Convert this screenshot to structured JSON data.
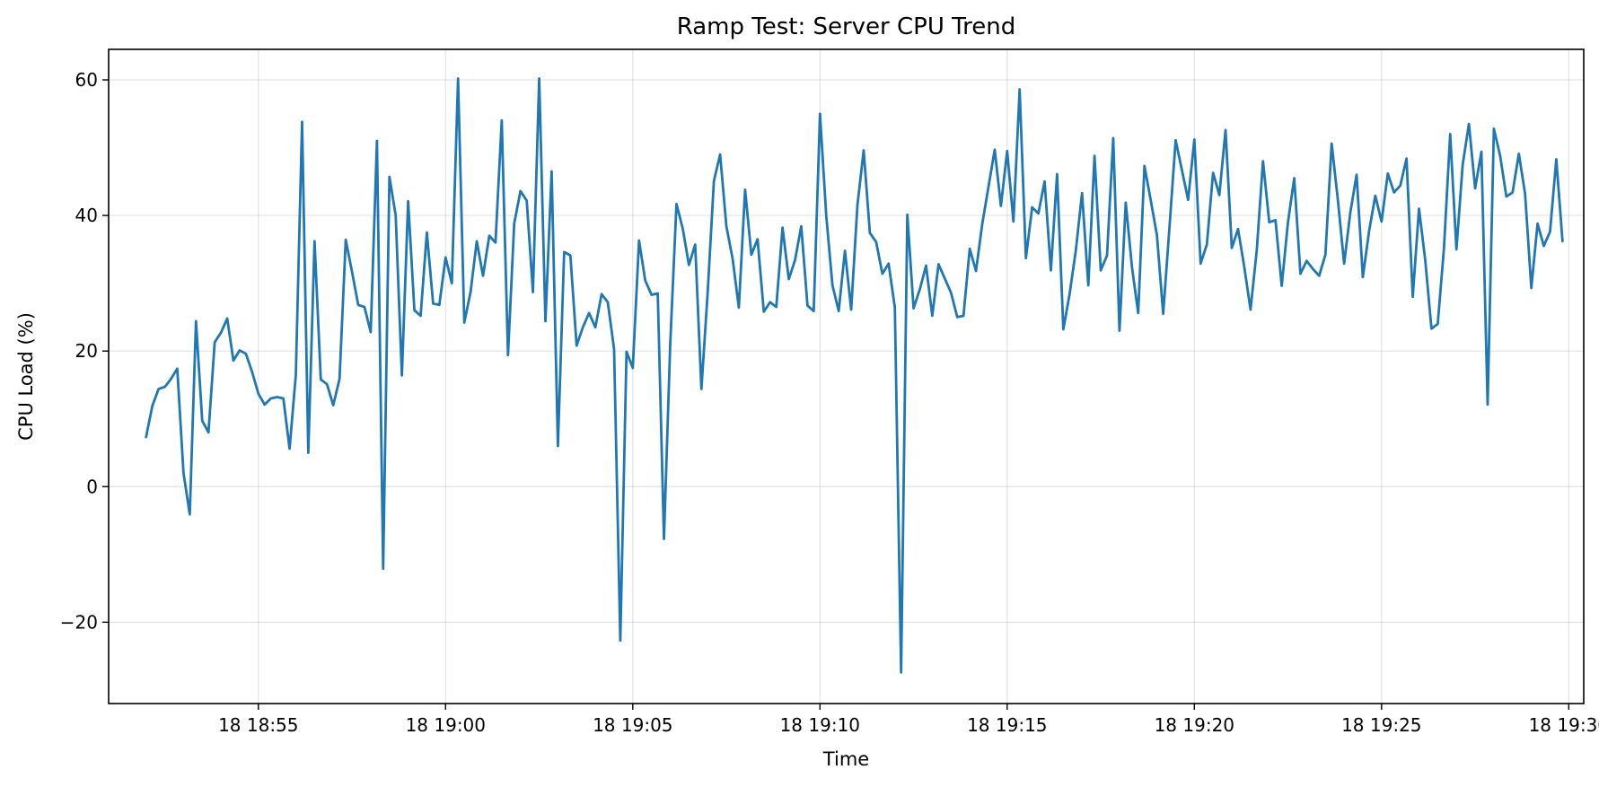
{
  "chart_data": {
    "type": "line",
    "title": "Ramp Test: Server CPU Trend",
    "xlabel": "Time",
    "ylabel": "CPU Load (%)",
    "x_unit": "minutes after 18 18:52",
    "x_start_label": "18 18:52",
    "xlim": [
      -1.0,
      38.4
    ],
    "ylim": [
      -32,
      64.5
    ],
    "grid": true,
    "line_color": "#1f77b4",
    "x_ticks": [
      {
        "value": 3,
        "label": "18 18:55"
      },
      {
        "value": 8,
        "label": "18 19:00"
      },
      {
        "value": 13,
        "label": "18 19:05"
      },
      {
        "value": 18,
        "label": "18 19:10"
      },
      {
        "value": 23,
        "label": "18 19:15"
      },
      {
        "value": 28,
        "label": "18 19:20"
      },
      {
        "value": 33,
        "label": "18 19:25"
      },
      {
        "value": 38,
        "label": "18 19:30"
      }
    ],
    "y_ticks": [
      {
        "value": -20,
        "label": "−20"
      },
      {
        "value": 0,
        "label": "0"
      },
      {
        "value": 20,
        "label": "20"
      },
      {
        "value": 40,
        "label": "40"
      },
      {
        "value": 60,
        "label": "60"
      }
    ],
    "series": [
      {
        "values": [
          [
            0.0,
            7.3
          ],
          [
            0.167,
            11.9
          ],
          [
            0.333,
            14.4
          ],
          [
            0.5,
            14.7
          ],
          [
            0.667,
            15.9
          ],
          [
            0.833,
            17.4
          ],
          [
            1.0,
            2.0
          ],
          [
            1.167,
            -4.1
          ],
          [
            1.333,
            24.4
          ],
          [
            1.5,
            9.7
          ],
          [
            1.667,
            8.0
          ],
          [
            1.833,
            21.3
          ],
          [
            2.0,
            22.7
          ],
          [
            2.167,
            24.8
          ],
          [
            2.333,
            18.6
          ],
          [
            2.5,
            20.1
          ],
          [
            2.667,
            19.6
          ],
          [
            2.833,
            16.9
          ],
          [
            3.0,
            13.7
          ],
          [
            3.167,
            12.1
          ],
          [
            3.333,
            13.0
          ],
          [
            3.5,
            13.2
          ],
          [
            3.667,
            13.0
          ],
          [
            3.833,
            5.6
          ],
          [
            4.0,
            16.5
          ],
          [
            4.167,
            53.8
          ],
          [
            4.333,
            5.0
          ],
          [
            4.5,
            36.2
          ],
          [
            4.667,
            15.8
          ],
          [
            4.833,
            15.1
          ],
          [
            5.0,
            12.0
          ],
          [
            5.167,
            15.9
          ],
          [
            5.333,
            36.4
          ],
          [
            5.5,
            31.7
          ],
          [
            5.667,
            26.8
          ],
          [
            5.833,
            26.5
          ],
          [
            6.0,
            22.8
          ],
          [
            6.167,
            51.0
          ],
          [
            6.333,
            -12.1
          ],
          [
            6.5,
            45.7
          ],
          [
            6.667,
            40.0
          ],
          [
            6.833,
            16.4
          ],
          [
            7.0,
            42.1
          ],
          [
            7.167,
            26.0
          ],
          [
            7.333,
            25.2
          ],
          [
            7.5,
            37.5
          ],
          [
            7.667,
            27.0
          ],
          [
            7.833,
            26.8
          ],
          [
            8.0,
            33.8
          ],
          [
            8.167,
            30.0
          ],
          [
            8.333,
            60.2
          ],
          [
            8.5,
            24.2
          ],
          [
            8.667,
            28.7
          ],
          [
            8.833,
            36.2
          ],
          [
            9.0,
            31.1
          ],
          [
            9.167,
            37.0
          ],
          [
            9.333,
            36.0
          ],
          [
            9.5,
            54.0
          ],
          [
            9.667,
            19.4
          ],
          [
            9.833,
            38.8
          ],
          [
            10.0,
            43.6
          ],
          [
            10.167,
            42.2
          ],
          [
            10.333,
            28.7
          ],
          [
            10.5,
            60.2
          ],
          [
            10.667,
            24.4
          ],
          [
            10.833,
            46.5
          ],
          [
            11.0,
            6.0
          ],
          [
            11.167,
            34.6
          ],
          [
            11.333,
            34.1
          ],
          [
            11.5,
            20.8
          ],
          [
            11.667,
            23.5
          ],
          [
            11.833,
            25.6
          ],
          [
            12.0,
            23.5
          ],
          [
            12.167,
            28.4
          ],
          [
            12.333,
            27.2
          ],
          [
            12.5,
            20.3
          ],
          [
            12.667,
            -22.7
          ],
          [
            12.833,
            19.9
          ],
          [
            13.0,
            17.5
          ],
          [
            13.167,
            36.3
          ],
          [
            13.333,
            30.4
          ],
          [
            13.5,
            28.3
          ],
          [
            13.667,
            28.5
          ],
          [
            13.833,
            -7.7
          ],
          [
            14.0,
            21.0
          ],
          [
            14.167,
            41.7
          ],
          [
            14.333,
            38.1
          ],
          [
            14.5,
            32.7
          ],
          [
            14.667,
            35.7
          ],
          [
            14.833,
            14.4
          ],
          [
            15.0,
            28.6
          ],
          [
            15.167,
            45.1
          ],
          [
            15.333,
            49.0
          ],
          [
            15.5,
            38.4
          ],
          [
            15.667,
            33.6
          ],
          [
            15.833,
            26.4
          ],
          [
            16.0,
            43.8
          ],
          [
            16.167,
            34.2
          ],
          [
            16.333,
            36.5
          ],
          [
            16.5,
            25.8
          ],
          [
            16.667,
            27.2
          ],
          [
            16.833,
            26.5
          ],
          [
            17.0,
            38.2
          ],
          [
            17.167,
            30.6
          ],
          [
            17.333,
            33.4
          ],
          [
            17.5,
            38.4
          ],
          [
            17.667,
            26.7
          ],
          [
            17.833,
            25.9
          ],
          [
            18.0,
            55.0
          ],
          [
            18.167,
            40.0
          ],
          [
            18.333,
            29.7
          ],
          [
            18.5,
            25.9
          ],
          [
            18.667,
            34.8
          ],
          [
            18.833,
            26.1
          ],
          [
            19.0,
            41.5
          ],
          [
            19.167,
            49.6
          ],
          [
            19.333,
            37.4
          ],
          [
            19.5,
            36.1
          ],
          [
            19.667,
            31.4
          ],
          [
            19.833,
            32.9
          ],
          [
            20.0,
            26.4
          ],
          [
            20.167,
            -27.4
          ],
          [
            20.333,
            40.1
          ],
          [
            20.5,
            26.3
          ],
          [
            20.667,
            29.1
          ],
          [
            20.833,
            32.6
          ],
          [
            21.0,
            25.2
          ],
          [
            21.167,
            32.8
          ],
          [
            21.333,
            30.7
          ],
          [
            21.5,
            28.6
          ],
          [
            21.667,
            25.0
          ],
          [
            21.833,
            25.2
          ],
          [
            22.0,
            35.1
          ],
          [
            22.167,
            31.8
          ],
          [
            22.333,
            38.7
          ],
          [
            22.5,
            44.2
          ],
          [
            22.667,
            49.7
          ],
          [
            22.833,
            41.4
          ],
          [
            23.0,
            49.5
          ],
          [
            23.167,
            39.1
          ],
          [
            23.333,
            58.6
          ],
          [
            23.5,
            33.7
          ],
          [
            23.667,
            41.2
          ],
          [
            23.833,
            40.3
          ],
          [
            24.0,
            45.0
          ],
          [
            24.167,
            31.9
          ],
          [
            24.333,
            46.1
          ],
          [
            24.5,
            23.2
          ],
          [
            24.667,
            28.4
          ],
          [
            24.833,
            34.8
          ],
          [
            25.0,
            43.3
          ],
          [
            25.167,
            29.7
          ],
          [
            25.333,
            48.8
          ],
          [
            25.5,
            31.9
          ],
          [
            25.667,
            34.1
          ],
          [
            25.833,
            51.4
          ],
          [
            26.0,
            23.0
          ],
          [
            26.167,
            41.9
          ],
          [
            26.333,
            32.4
          ],
          [
            26.5,
            25.6
          ],
          [
            26.667,
            47.3
          ],
          [
            26.833,
            42.3
          ],
          [
            27.0,
            37.1
          ],
          [
            27.167,
            25.5
          ],
          [
            27.333,
            38.1
          ],
          [
            27.5,
            51.1
          ],
          [
            27.667,
            46.7
          ],
          [
            27.833,
            42.3
          ],
          [
            28.0,
            51.2
          ],
          [
            28.167,
            32.9
          ],
          [
            28.333,
            35.7
          ],
          [
            28.5,
            46.3
          ],
          [
            28.667,
            43.0
          ],
          [
            28.833,
            52.6
          ],
          [
            29.0,
            35.2
          ],
          [
            29.167,
            38.0
          ],
          [
            29.333,
            32.4
          ],
          [
            29.5,
            26.1
          ],
          [
            29.667,
            34.9
          ],
          [
            29.833,
            48.0
          ],
          [
            30.0,
            39.0
          ],
          [
            30.167,
            39.3
          ],
          [
            30.333,
            29.6
          ],
          [
            30.5,
            39.0
          ],
          [
            30.667,
            45.5
          ],
          [
            30.833,
            31.4
          ],
          [
            31.0,
            33.3
          ],
          [
            31.167,
            32.1
          ],
          [
            31.333,
            31.1
          ],
          [
            31.5,
            34.2
          ],
          [
            31.667,
            50.6
          ],
          [
            31.833,
            42.3
          ],
          [
            32.0,
            32.9
          ],
          [
            32.167,
            40.5
          ],
          [
            32.333,
            46.0
          ],
          [
            32.5,
            30.9
          ],
          [
            32.667,
            37.7
          ],
          [
            32.833,
            42.9
          ],
          [
            33.0,
            39.1
          ],
          [
            33.167,
            46.2
          ],
          [
            33.333,
            43.4
          ],
          [
            33.5,
            44.4
          ],
          [
            33.667,
            48.4
          ],
          [
            33.833,
            28.0
          ],
          [
            34.0,
            41.0
          ],
          [
            34.167,
            33.4
          ],
          [
            34.333,
            23.3
          ],
          [
            34.5,
            24.0
          ],
          [
            34.667,
            35.2
          ],
          [
            34.833,
            52.0
          ],
          [
            35.0,
            35.0
          ],
          [
            35.167,
            47.5
          ],
          [
            35.333,
            53.5
          ],
          [
            35.5,
            44.0
          ],
          [
            35.667,
            49.4
          ],
          [
            35.833,
            12.1
          ],
          [
            36.0,
            52.8
          ],
          [
            36.167,
            48.8
          ],
          [
            36.333,
            42.8
          ],
          [
            36.5,
            43.4
          ],
          [
            36.667,
            49.1
          ],
          [
            36.833,
            43.2
          ],
          [
            37.0,
            29.3
          ],
          [
            37.167,
            38.8
          ],
          [
            37.333,
            35.5
          ],
          [
            37.5,
            37.6
          ],
          [
            37.667,
            48.3
          ],
          [
            37.833,
            36.2
          ]
        ]
      }
    ]
  }
}
